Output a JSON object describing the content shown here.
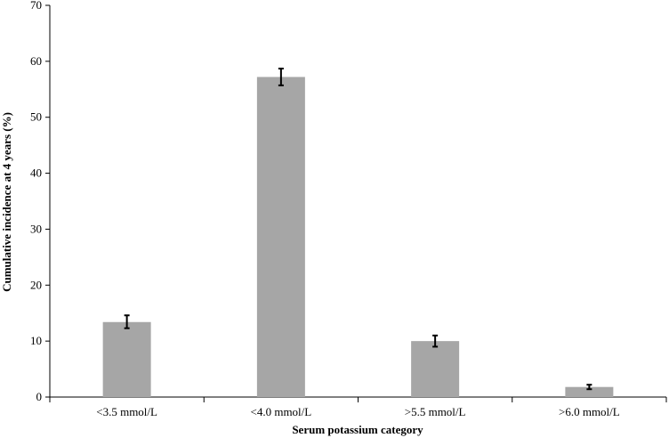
{
  "chart_data": {
    "type": "bar",
    "title": "",
    "xlabel": "Serum potassium category",
    "ylabel": "Cumulative incidence at 4 years (%)",
    "ylim": [
      0,
      70
    ],
    "yticks": [
      0,
      10,
      20,
      30,
      40,
      50,
      60,
      70
    ],
    "categories": [
      "<3.5 mmol/L",
      "<4.0 mmol/L",
      ">5.5 mmol/L",
      ">6.0 mmol/L"
    ],
    "values": [
      13.4,
      57.2,
      10.0,
      1.8
    ],
    "error_low": [
      12.3,
      55.7,
      9.0,
      1.4
    ],
    "error_high": [
      14.6,
      58.7,
      11.0,
      2.2
    ],
    "grid": false,
    "legend": "none",
    "bar_color": "#a6a6a6",
    "error_bar_color": "#000000"
  }
}
